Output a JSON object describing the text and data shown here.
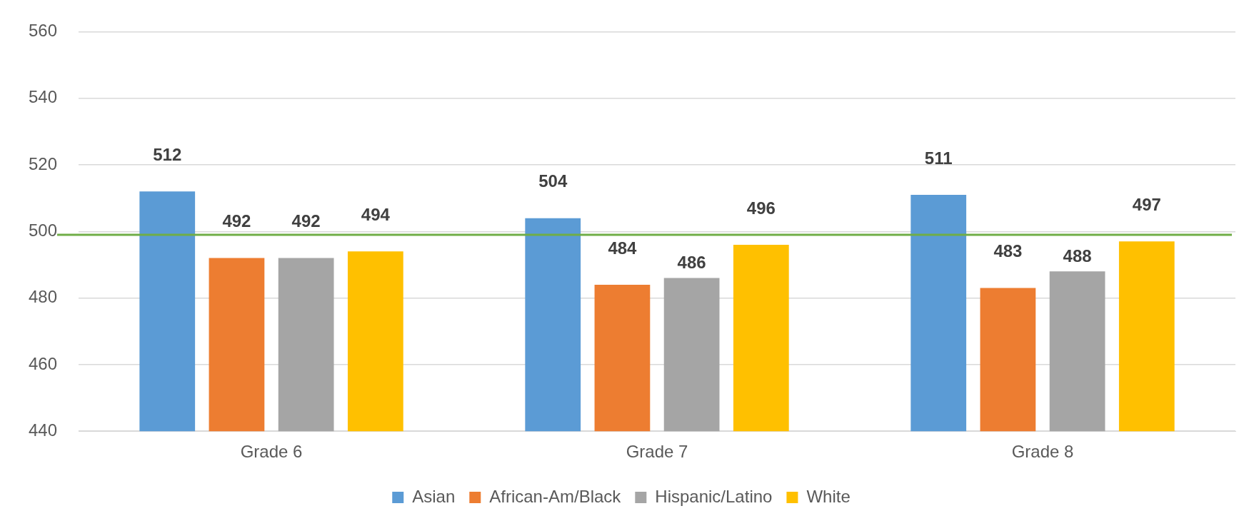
{
  "chart_data": {
    "type": "bar",
    "categories": [
      "Grade 6",
      "Grade 7",
      "Grade 8"
    ],
    "series": [
      {
        "name": "Asian",
        "color": "#5b9bd5",
        "values": [
          512,
          504,
          511
        ]
      },
      {
        "name": "African-Am/Black",
        "color": "#ed7d31",
        "values": [
          492,
          484,
          483
        ]
      },
      {
        "name": "Hispanic/Latino",
        "color": "#a5a5a5",
        "values": [
          492,
          486,
          488
        ]
      },
      {
        "name": "White",
        "color": "#ffc000",
        "values": [
          494,
          496,
          497
        ]
      }
    ],
    "ylim": [
      440,
      560
    ],
    "yticks": [
      440,
      460,
      480,
      500,
      520,
      540,
      560
    ],
    "grid": "y",
    "legend": "bottom",
    "data_labels": true,
    "ref_lines": [
      {
        "axis": "y",
        "value": 499,
        "color": "#70ad47"
      }
    ]
  }
}
